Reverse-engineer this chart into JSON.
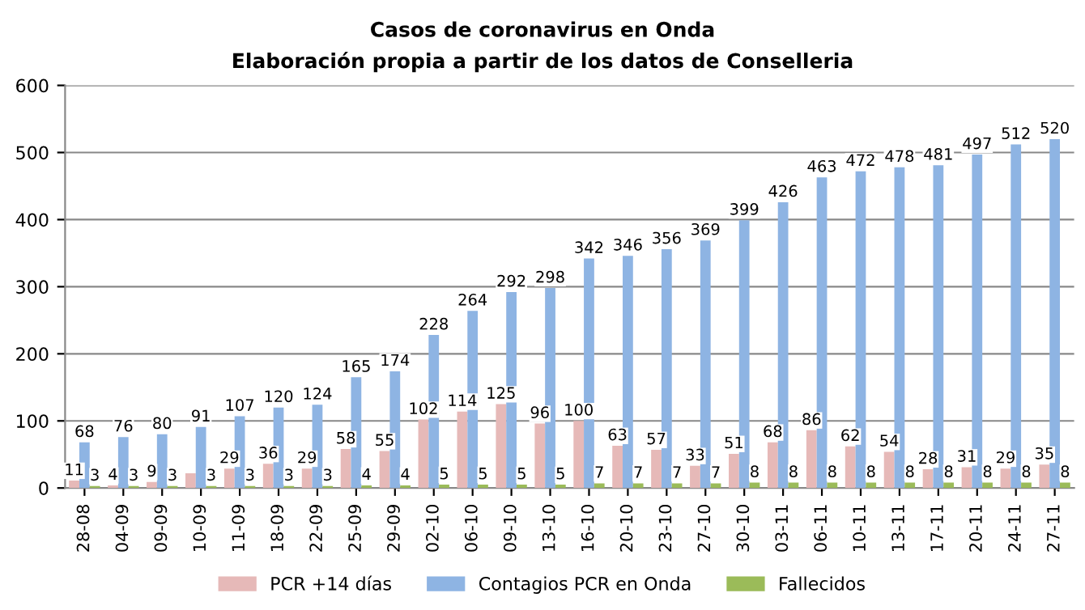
{
  "chart_data": {
    "type": "bar",
    "title": "Casos de coronavirus en Onda",
    "subtitle": "Elaboración propia a partir de los datos de Conselleria",
    "categories": [
      "28-08",
      "04-09",
      "09-09",
      "10-09",
      "11-09",
      "18-09",
      "22-09",
      "25-09",
      "29-09",
      "02-10",
      "06-10",
      "09-10",
      "13-10",
      "16-10",
      "20-10",
      "23-10",
      "27-10",
      "30-10",
      "03-11",
      "06-11",
      "10-11",
      "13-11",
      "17-11",
      "20-11",
      "24-11",
      "27-11"
    ],
    "series": [
      {
        "name": "PCR +14 días",
        "color": "#e6b9b8",
        "values": [
          11,
          4,
          9,
          22,
          29,
          36,
          29,
          58,
          55,
          102,
          114,
          125,
          96,
          100,
          63,
          57,
          33,
          51,
          68,
          86,
          62,
          54,
          28,
          31,
          29,
          35
        ],
        "value_labels": [
          "11",
          "4",
          "9",
          null,
          "29",
          "36",
          "29",
          "58",
          "55",
          "102",
          "114",
          "125",
          "96",
          "100",
          "63",
          "57",
          "33",
          "51",
          "68",
          "86",
          "62",
          "54",
          "28",
          "31",
          "29",
          "35"
        ]
      },
      {
        "name": "Contagios PCR en Onda",
        "color": "#8eb4e3",
        "values": [
          68,
          76,
          80,
          91,
          107,
          120,
          124,
          165,
          174,
          228,
          264,
          292,
          298,
          342,
          346,
          356,
          369,
          399,
          426,
          463,
          472,
          478,
          481,
          497,
          512,
          520
        ],
        "value_labels": [
          "68",
          "76",
          "80",
          "91",
          "107",
          "120",
          "124",
          "165",
          "174",
          "228",
          "264",
          "292",
          "298",
          "342",
          "346",
          "356",
          "369",
          "399",
          "426",
          "463",
          "472",
          "478",
          "481",
          "497",
          "512",
          "520"
        ]
      },
      {
        "name": "Fallecidos",
        "color": "#9bbb59",
        "values": [
          3,
          3,
          3,
          3,
          3,
          3,
          3,
          4,
          4,
          5,
          5,
          5,
          5,
          7,
          7,
          7,
          7,
          8,
          8,
          8,
          8,
          8,
          8,
          8,
          8,
          8
        ],
        "value_labels": [
          "3",
          "3",
          "3",
          "3",
          "3",
          "3",
          "3",
          "4",
          "4",
          "5",
          "5",
          "5",
          "5",
          "7",
          "7",
          "7",
          "7",
          "8",
          "8",
          "8",
          "8",
          "8",
          "8",
          "8",
          "8",
          "8"
        ]
      }
    ],
    "ylim": [
      0,
      600
    ],
    "yticks": [
      0,
      100,
      200,
      300,
      400,
      500,
      600
    ],
    "grid": "y",
    "legend": "bottom"
  }
}
